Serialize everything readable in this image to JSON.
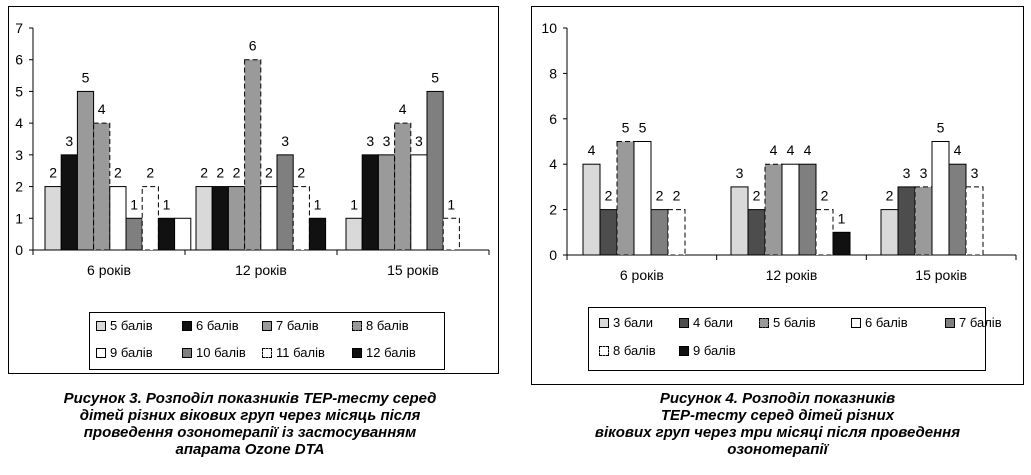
{
  "colors": {
    "white": "#ffffff",
    "light_gray": "#d9d9d9",
    "dark_gray": "#4d4d4d",
    "mid_gray": "#9a9a9a",
    "gray": "#7f7f7f",
    "black": "#111111"
  },
  "captions": {
    "left": [
      "Рисунок 3. Розподіл показників ТЕР-тесту серед",
      "дітей різних вікових груп через місяць після",
      "проведення озонотерапії із застосуванням",
      "апарата Ozone DTA"
    ],
    "right": [
      "Рисунок 4. Розподіл показників",
      "ТЕР-тесту серед дітей різних",
      "вікових груп через три місяці після проведення",
      "озонотерапії"
    ]
  },
  "chart_data": [
    {
      "type": "bar",
      "title": "",
      "xlabel": "",
      "ylabel": "",
      "ylim": [
        0,
        7
      ],
      "yticks": [
        0,
        1,
        2,
        3,
        4,
        5,
        6,
        7
      ],
      "grid": false,
      "legend_position": "bottom",
      "categories": [
        "6 років",
        "12 років",
        "15 років"
      ],
      "series": [
        {
          "name": "5 балів",
          "values": [
            2,
            2,
            1
          ],
          "fill": "light_gray",
          "style": "solid"
        },
        {
          "name": "6 балів",
          "values": [
            3,
            2,
            3
          ],
          "fill": "black",
          "style": "solid"
        },
        {
          "name": "7 балів",
          "values": [
            5,
            2,
            3
          ],
          "fill": "mid_gray",
          "style": "solid"
        },
        {
          "name": "8 балів",
          "values": [
            4,
            6,
            4
          ],
          "fill": "mid_gray",
          "style": "dashed"
        },
        {
          "name": "9 балів",
          "values": [
            2,
            2,
            3
          ],
          "fill": "white",
          "style": "solid"
        },
        {
          "name": "10 балів",
          "values": [
            1,
            3,
            5
          ],
          "fill": "gray",
          "style": "solid"
        },
        {
          "name": "11 балів",
          "values": [
            2,
            2,
            1
          ],
          "fill": "white",
          "style": "dashed"
        },
        {
          "name": "12 балів",
          "values": [
            1,
            1,
            null
          ],
          "fill": "black",
          "style": "solid"
        }
      ],
      "trailing_blank": [
        1,
        null,
        null
      ]
    },
    {
      "type": "bar",
      "title": "",
      "xlabel": "",
      "ylabel": "",
      "ylim": [
        0,
        10
      ],
      "yticks": [
        0,
        2,
        4,
        6,
        8,
        10
      ],
      "grid": false,
      "legend_position": "bottom",
      "categories": [
        "6 років",
        "12 років",
        "15 років"
      ],
      "series": [
        {
          "name": "3 бали",
          "values": [
            4,
            3,
            2
          ],
          "fill": "light_gray",
          "style": "solid"
        },
        {
          "name": "4 бали",
          "values": [
            2,
            2,
            3
          ],
          "fill": "dark_gray",
          "style": "solid"
        },
        {
          "name": "5 балів",
          "values": [
            5,
            4,
            3
          ],
          "fill": "mid_gray",
          "style": "dashed"
        },
        {
          "name": "6 балів",
          "values": [
            5,
            4,
            5
          ],
          "fill": "white",
          "style": "solid"
        },
        {
          "name": "7 балів",
          "values": [
            2,
            4,
            4
          ],
          "fill": "gray",
          "style": "solid"
        },
        {
          "name": "8 балів",
          "values": [
            2,
            2,
            3
          ],
          "fill": "white",
          "style": "dashed"
        },
        {
          "name": "9 балів",
          "values": [
            null,
            1,
            null
          ],
          "fill": "black",
          "style": "solid"
        }
      ]
    }
  ]
}
